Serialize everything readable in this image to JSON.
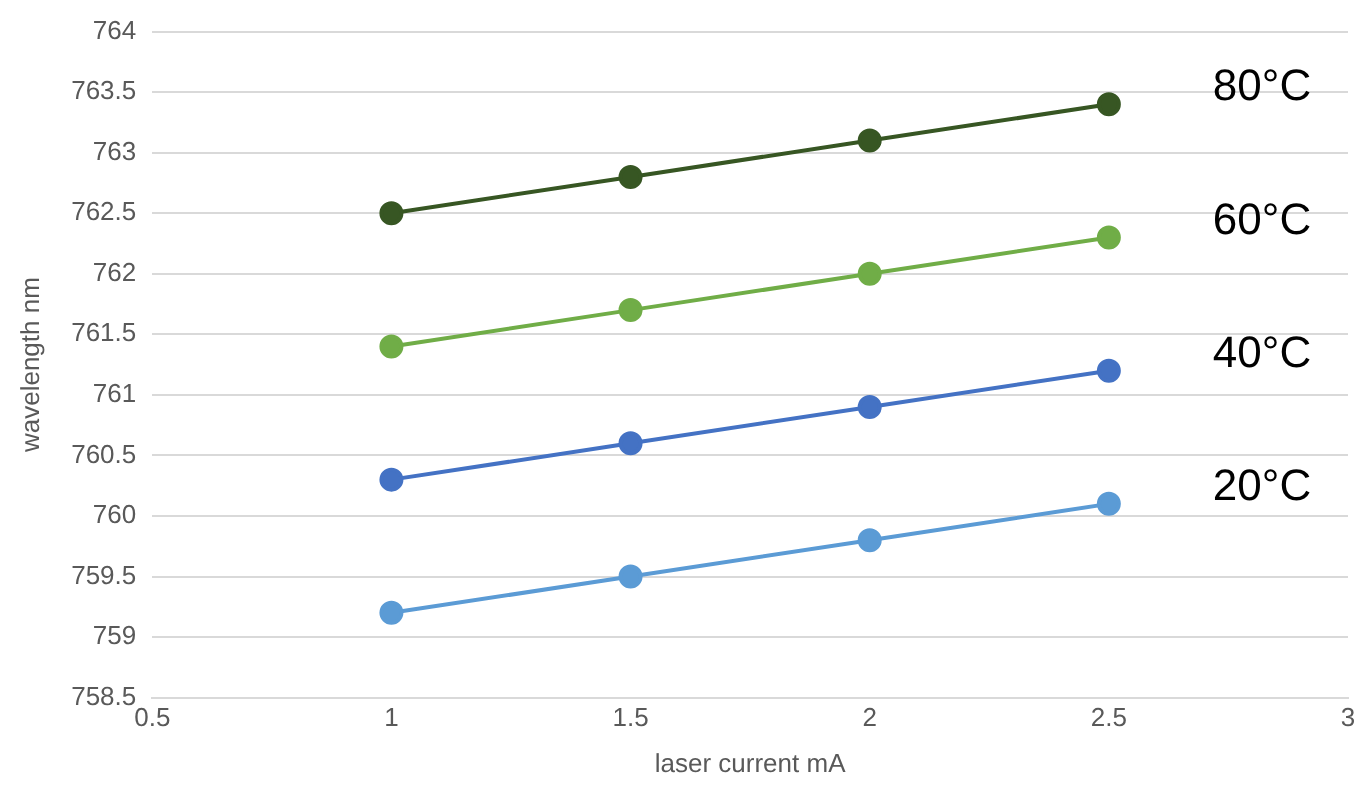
{
  "chart_data": {
    "type": "line",
    "xlabel": "laser current mA",
    "ylabel": "wavelength nm",
    "x": [
      1,
      1.5,
      2,
      2.5
    ],
    "series": [
      {
        "name": "80°C",
        "color": "#375623",
        "values": [
          762.5,
          762.8,
          763.1,
          763.4
        ]
      },
      {
        "name": "60°C",
        "color": "#70ad47",
        "values": [
          761.4,
          761.7,
          762.0,
          762.3
        ]
      },
      {
        "name": "40°C",
        "color": "#4472c4",
        "values": [
          760.3,
          760.6,
          760.9,
          761.2
        ]
      },
      {
        "name": "20°C",
        "color": "#5b9bd5",
        "values": [
          759.2,
          759.5,
          759.8,
          760.1
        ]
      }
    ],
    "xlim": [
      0.5,
      3
    ],
    "xticks": [
      0.5,
      1,
      1.5,
      2,
      2.5,
      3
    ],
    "ylim": [
      758.5,
      764
    ],
    "yticks": [
      758.5,
      759,
      759.5,
      760,
      760.5,
      761,
      761.5,
      762,
      762.5,
      763,
      763.5,
      764
    ],
    "grid": "y",
    "marker": "circle",
    "line_style": "solid",
    "legend": false
  }
}
